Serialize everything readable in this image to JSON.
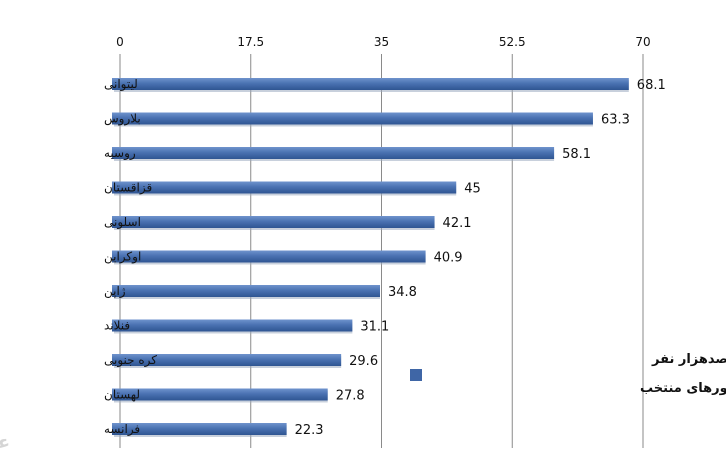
{
  "chart_data": {
    "type": "bar",
    "orientation": "horizontal",
    "categories": [
      "لیتوانی",
      "بلاروس",
      "روسیه",
      "قزاقستان",
      "اسلونی",
      "اوکراین",
      "ژاپن",
      "فنلاند",
      "کره جنوبی",
      "لهستان",
      "فرانسه"
    ],
    "series": [
      {
        "name": "نرخ خودکشی به ازای هر صدهزار نفر در برخی کشورهای منتخب",
        "values": [
          68.1,
          63.3,
          58.1,
          45,
          42.1,
          40.9,
          34.8,
          31.1,
          29.6,
          27.8,
          22.3
        ]
      }
    ],
    "legend_lines": [
      "نرخ خودکشی به ازای هر صدهزار نفر",
      "در برخی کشورهای منتخب"
    ],
    "data_labels": [
      "68.1",
      "63.3",
      "58.1",
      "45",
      "42.1",
      "40.9",
      "34.8",
      "31.1",
      "29.6",
      "27.8",
      "22.3"
    ],
    "x_ticks": [
      "0",
      "17.5",
      "35",
      "52.5",
      "70"
    ],
    "xlim": [
      0,
      70
    ],
    "axis_position": "top",
    "grid": true,
    "legend_position": "bottom-right",
    "bar_color": "#4a72b2"
  },
  "watermark": "عصر ایران"
}
